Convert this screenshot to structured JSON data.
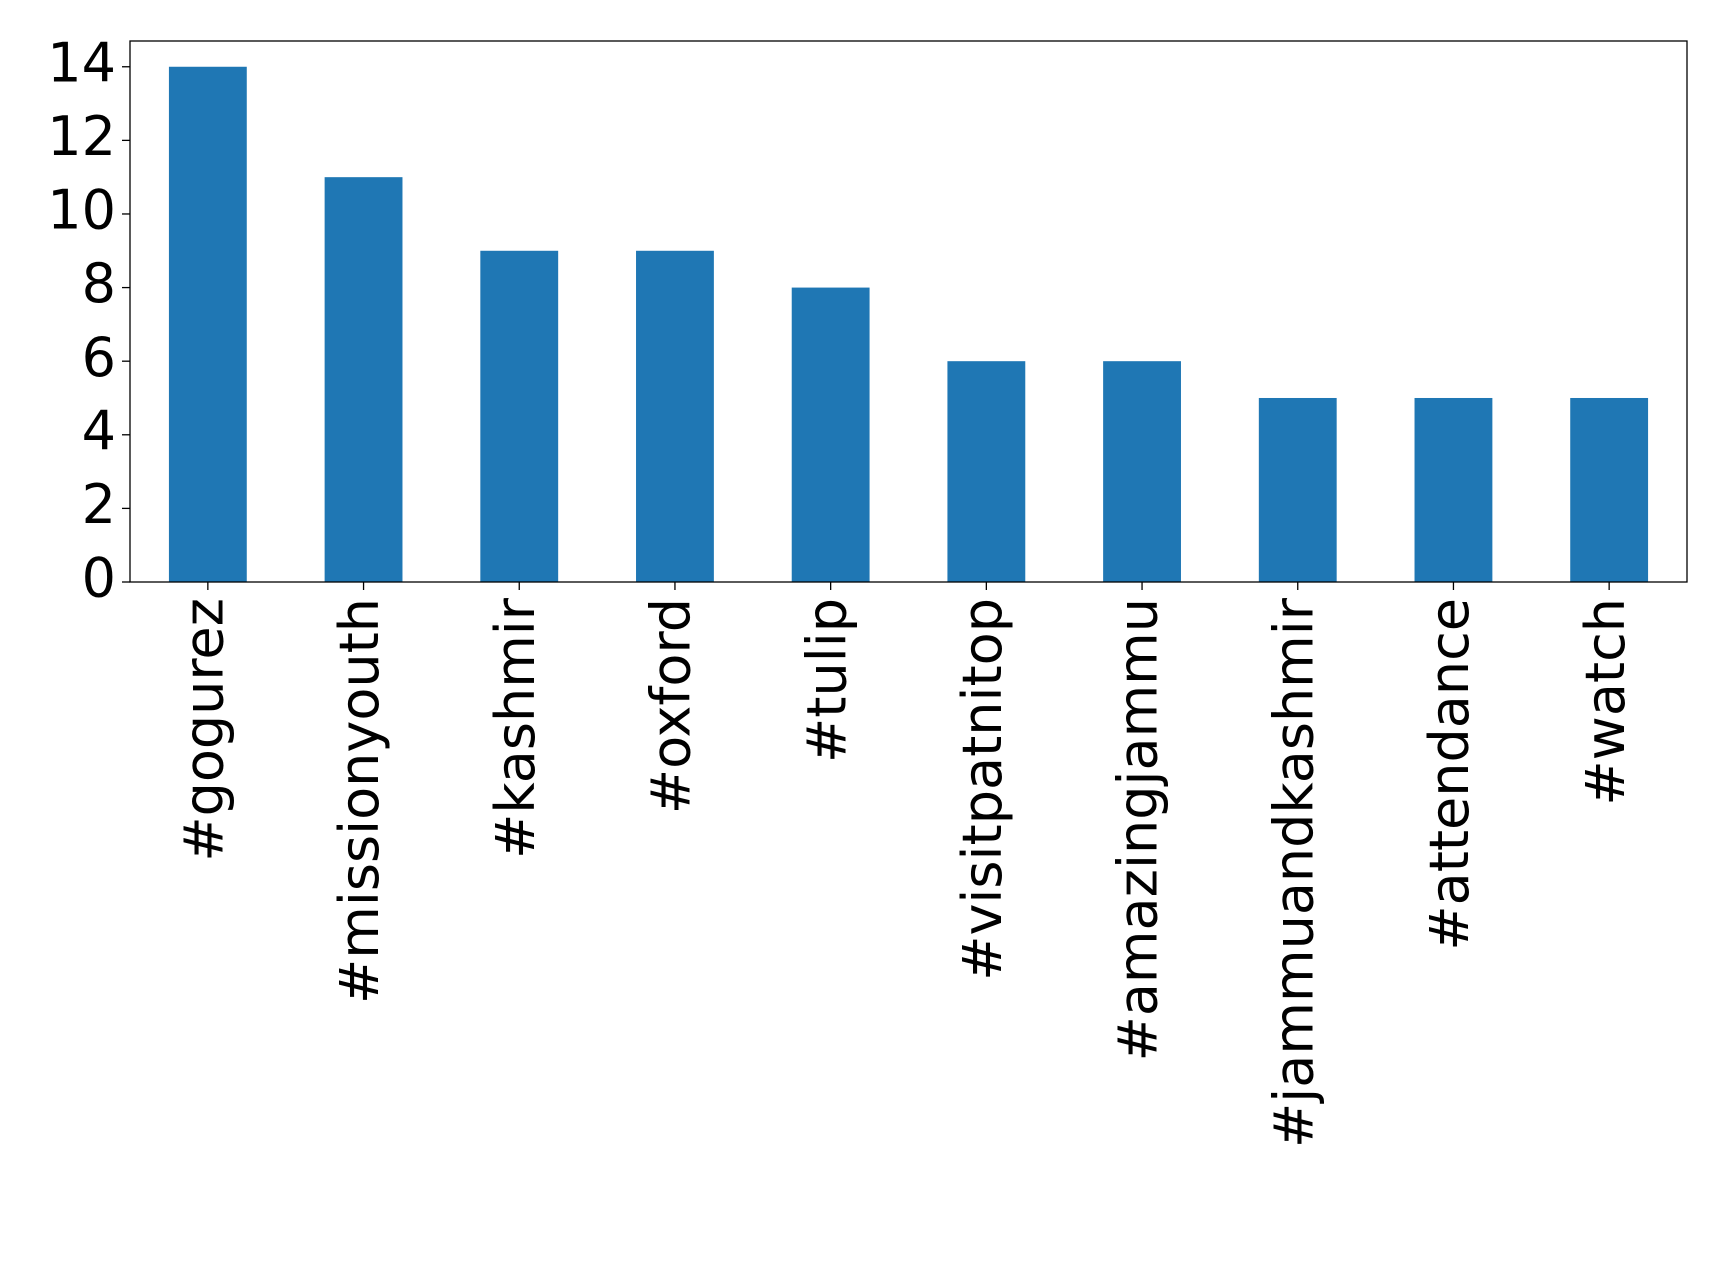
{
  "chart_data": {
    "type": "bar",
    "categories": [
      "#gogurez",
      "#missionyouth",
      "#kashmir",
      "#oxford",
      "#tulip",
      "#visitpatnitop",
      "#amazingjammu",
      "#jammuandkashmir",
      "#attendance",
      "#watch"
    ],
    "values": [
      14,
      11,
      9,
      9,
      8,
      6,
      6,
      5,
      5,
      5
    ],
    "color": "#1f77b4",
    "ylim": [
      0,
      14.7
    ],
    "yticks": [
      0,
      2,
      4,
      6,
      8,
      10,
      12,
      14
    ],
    "grid": false
  }
}
